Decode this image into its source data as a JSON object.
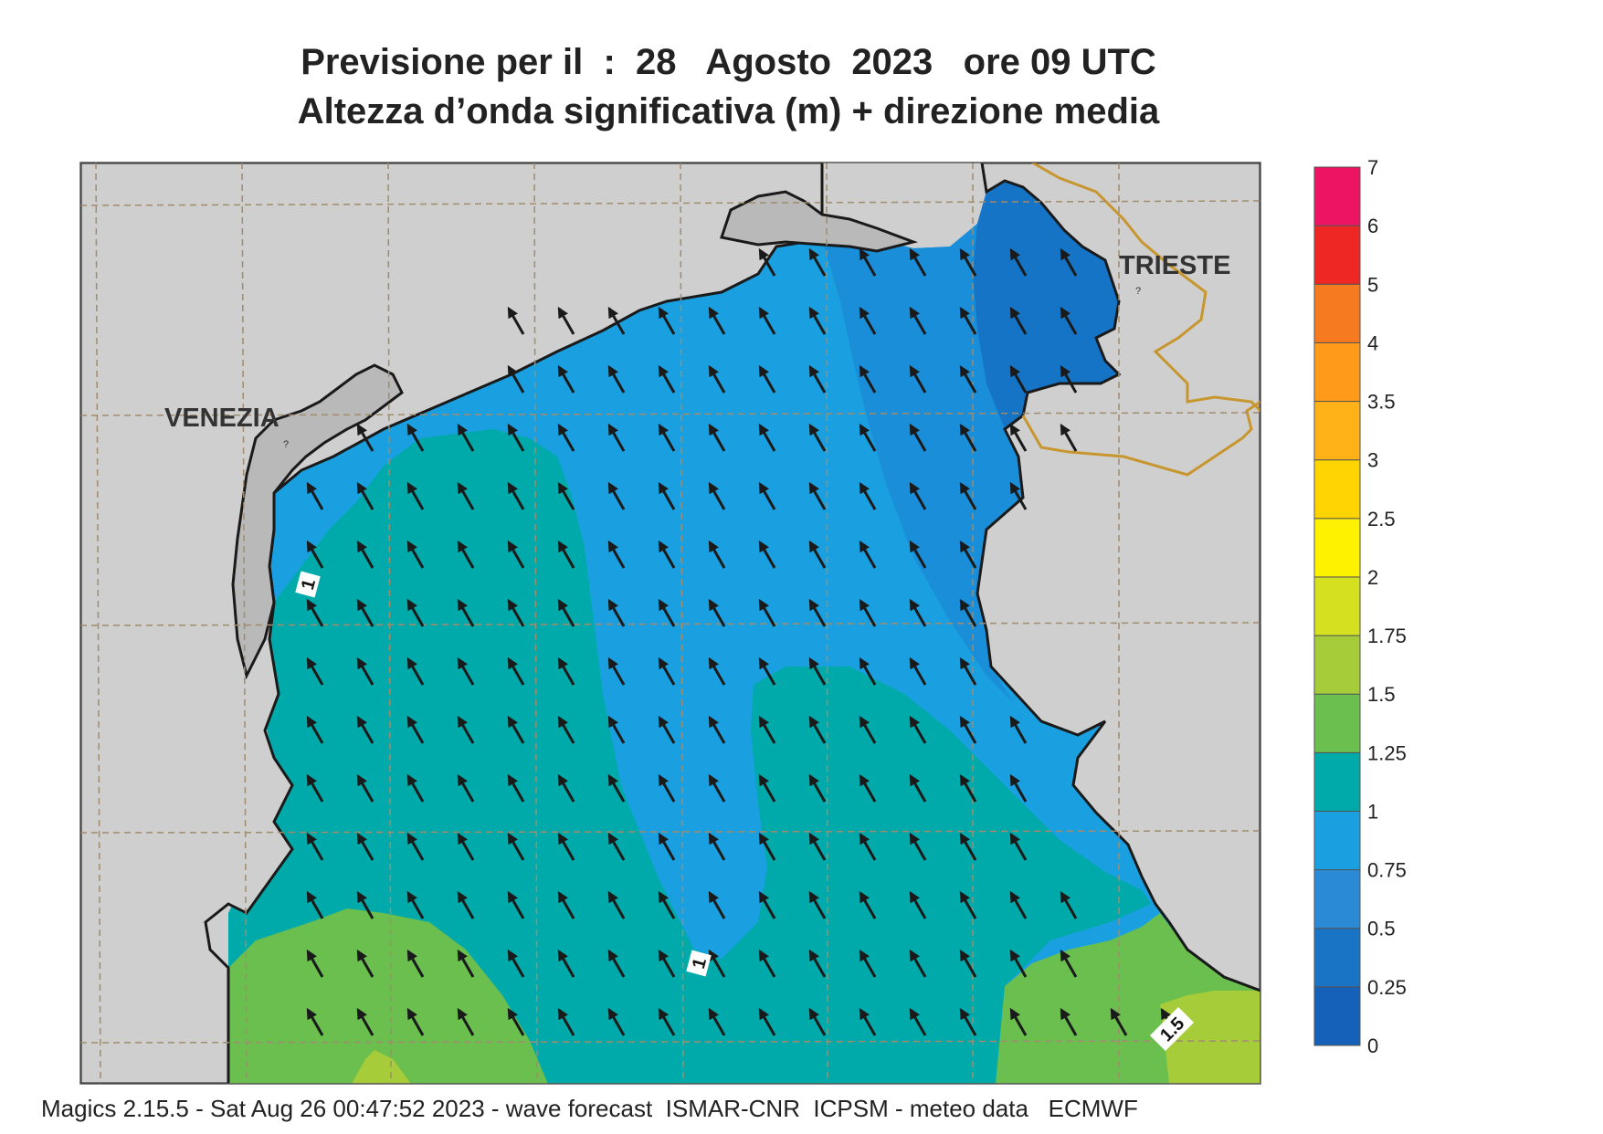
{
  "header": {
    "title_line1": "Previsione per il  :  28   Agosto  2023   ore 09 UTC",
    "title_line2": "Altezza d’onda significativa (m) + direzione media"
  },
  "map": {
    "cities": [
      "VENEZIA",
      "TRIESTE"
    ],
    "contour_labels": [
      "1",
      "1",
      "1.5"
    ],
    "colors": {
      "land": "#cfcfcf",
      "coast": "#1a1a1a",
      "border": "#c8962e",
      "grid": "#a08c6e"
    }
  },
  "legend": {
    "ticks": [
      "7",
      "6",
      "5",
      "4",
      "3.5",
      "3",
      "2.5",
      "2",
      "1.75",
      "1.5",
      "1.25",
      "1",
      "0.75",
      "0.5",
      "0.25",
      "0"
    ],
    "colors": [
      "#1560b8",
      "#1a74c6",
      "#2a8ad6",
      "#1aa0e0",
      "#00aaaa",
      "#6abf4e",
      "#a6cc3a",
      "#d4e020",
      "#fff200",
      "#ffd400",
      "#ffb118",
      "#ff9a1a",
      "#f57a20",
      "#ee2624",
      "#ee1464"
    ]
  },
  "footer": {
    "text": "Magics 2.15.5 - Sat Aug 26 00:47:52 2023 - wave forecast  ISMAR-CNR  ICPSM - meteo data   ECMWF"
  }
}
